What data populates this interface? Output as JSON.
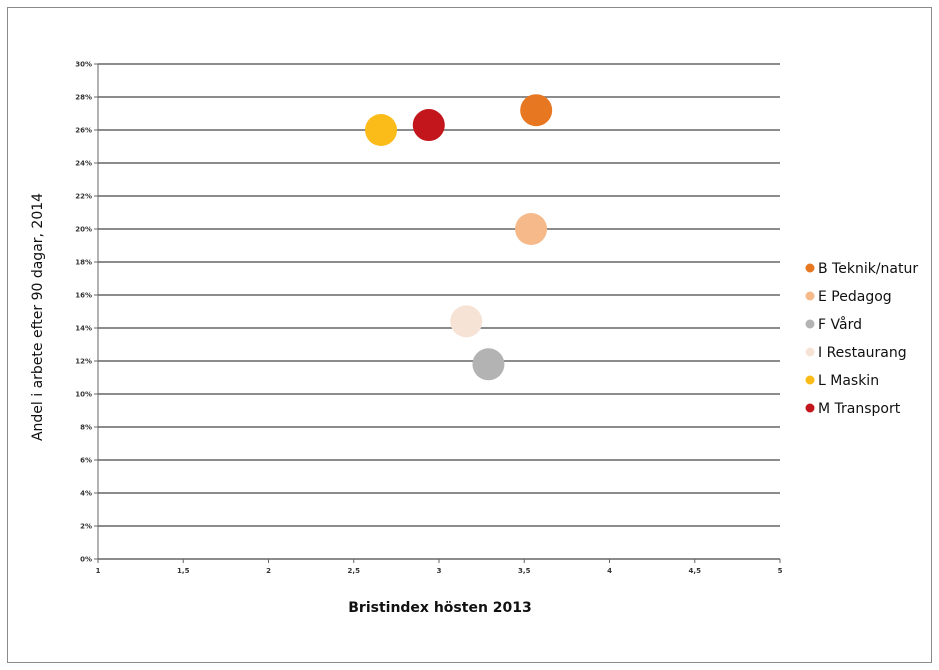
{
  "chart_data": {
    "type": "scatter",
    "title": "",
    "xlabel": "Bristindex hösten 2013",
    "ylabel": "Andel i arbete efter 90 dagar, 2014",
    "xlim": [
      1,
      5
    ],
    "ylim": [
      0,
      30
    ],
    "x_ticks": [
      {
        "value": 1,
        "label": "1"
      },
      {
        "value": 1.5,
        "label": "1,5"
      },
      {
        "value": 2,
        "label": "2"
      },
      {
        "value": 2.5,
        "label": "2,5"
      },
      {
        "value": 3,
        "label": "3"
      },
      {
        "value": 3.5,
        "label": "3,5"
      },
      {
        "value": 4,
        "label": "4"
      },
      {
        "value": 4.5,
        "label": "4,5"
      },
      {
        "value": 5,
        "label": "5"
      }
    ],
    "y_ticks": [
      {
        "value": 0,
        "label": "0%"
      },
      {
        "value": 2,
        "label": "2%"
      },
      {
        "value": 4,
        "label": "4%"
      },
      {
        "value": 6,
        "label": "6%"
      },
      {
        "value": 8,
        "label": "8%"
      },
      {
        "value": 10,
        "label": "10%"
      },
      {
        "value": 12,
        "label": "12%"
      },
      {
        "value": 14,
        "label": "14%"
      },
      {
        "value": 16,
        "label": "16%"
      },
      {
        "value": 18,
        "label": "18%"
      },
      {
        "value": 20,
        "label": "20%"
      },
      {
        "value": 22,
        "label": "22%"
      },
      {
        "value": 24,
        "label": "24%"
      },
      {
        "value": 26,
        "label": "26%"
      },
      {
        "value": 28,
        "label": "28%"
      },
      {
        "value": 30,
        "label": "30%"
      }
    ],
    "grid": {
      "horizontal": true,
      "vertical": false
    },
    "legend_position": "right",
    "series": [
      {
        "name": "B Teknik/natur",
        "color": "#e87722",
        "points": [
          {
            "x": 3.57,
            "y": 27.2
          }
        ]
      },
      {
        "name": "E Pedagog",
        "color": "#f5b98a",
        "points": [
          {
            "x": 3.54,
            "y": 20.0
          }
        ]
      },
      {
        "name": "F Vård",
        "color": "#b3b3b3",
        "points": [
          {
            "x": 3.29,
            "y": 11.8
          }
        ]
      },
      {
        "name": "I Restaurang",
        "color": "#f6e3d6",
        "points": [
          {
            "x": 3.16,
            "y": 14.4
          }
        ]
      },
      {
        "name": "L Maskin",
        "color": "#fbbc1a",
        "points": [
          {
            "x": 2.66,
            "y": 26.0
          }
        ]
      },
      {
        "name": "M Transport",
        "color": "#c3161c",
        "points": [
          {
            "x": 2.94,
            "y": 26.3
          }
        ]
      }
    ]
  }
}
